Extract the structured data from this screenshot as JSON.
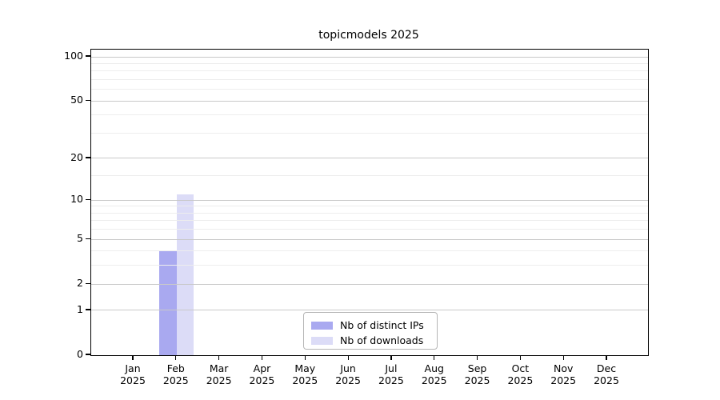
{
  "title": "topicmodels 2025",
  "chart_data": {
    "type": "bar",
    "title": "topicmodels 2025",
    "categories": [
      "Jan",
      "Feb",
      "Mar",
      "Apr",
      "May",
      "Jun",
      "Jul",
      "Aug",
      "Sep",
      "Oct",
      "Nov",
      "Dec"
    ],
    "category_year": "2025",
    "series": [
      {
        "name": "Nb of distinct IPs",
        "color": "#a9a9f0",
        "values": [
          0,
          4,
          0,
          0,
          0,
          0,
          0,
          0,
          0,
          0,
          0,
          0
        ]
      },
      {
        "name": "Nb of downloads",
        "color": "#dcdcf7",
        "values": [
          0,
          11,
          0,
          0,
          0,
          0,
          0,
          0,
          0,
          0,
          0,
          0
        ]
      }
    ],
    "xlabel": "",
    "ylabel": "",
    "y_axis": {
      "scale": "log10(1+x)",
      "ticks": [
        0,
        1,
        2,
        5,
        10,
        20,
        50,
        100
      ],
      "minor_ticks": [
        3,
        4,
        6,
        7,
        8,
        9,
        15,
        30,
        40,
        60,
        70,
        80,
        90
      ],
      "max": 112
    },
    "grid": {
      "enabled": true,
      "major_color": "#c9c9c9",
      "minor_color": "#ededed"
    },
    "legend": {
      "position": "lower center inside"
    }
  }
}
